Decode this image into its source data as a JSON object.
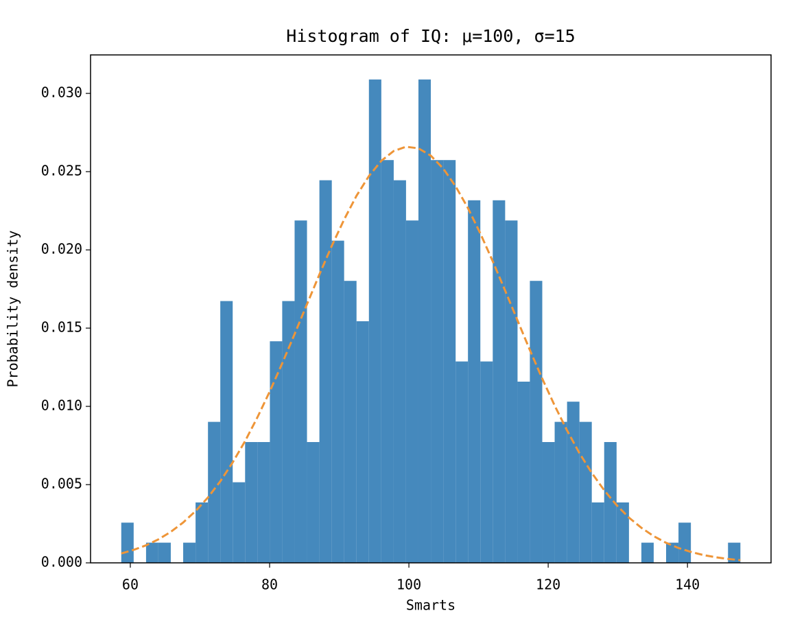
{
  "chart_data": {
    "type": "histogram",
    "title": "Histogram of IQ: μ=100, σ=15",
    "xlabel": "Smarts",
    "ylabel": "Probability density",
    "bins": [
      58.7,
      60.48,
      62.26,
      64.03,
      65.81,
      67.59,
      69.37,
      71.15,
      72.92,
      74.7,
      76.48,
      78.26,
      80.04,
      81.81,
      83.59,
      85.37,
      87.15,
      88.93,
      90.7,
      92.48,
      94.26,
      96.04,
      97.82,
      99.59,
      101.37,
      103.15,
      104.93,
      106.71,
      108.48,
      110.26,
      112.04,
      113.82,
      115.6,
      117.37,
      119.15,
      120.93,
      122.71,
      124.49,
      126.26,
      128.04,
      129.82,
      131.6,
      133.38,
      135.15,
      136.93,
      138.71,
      140.49,
      142.27,
      144.04,
      145.82,
      147.6
    ],
    "values": [
      0.00257,
      0,
      0.00129,
      0.00129,
      0,
      0.00129,
      0.00386,
      0.00901,
      0.01673,
      0.00515,
      0.00772,
      0.00772,
      0.01416,
      0.01673,
      0.02188,
      0.00772,
      0.02445,
      0.02059,
      0.01802,
      0.01544,
      0.03089,
      0.02574,
      0.02445,
      0.02188,
      0.03089,
      0.02574,
      0.02574,
      0.01287,
      0.02317,
      0.01287,
      0.02317,
      0.02188,
      0.01158,
      0.01802,
      0.00772,
      0.00901,
      0.0103,
      0.00901,
      0.00386,
      0.00772,
      0.00386,
      0,
      0.00129,
      0,
      0.00129,
      0.00257,
      0,
      0,
      0,
      0.00129
    ],
    "color": "#4589bd",
    "curve": {
      "color": "#ee9538",
      "values": [
        0.0006,
        0.00083,
        0.00112,
        0.0015,
        0.00198,
        0.00258,
        0.00331,
        0.00418,
        0.00521,
        0.00642,
        0.00778,
        0.00931,
        0.01097,
        0.01275,
        0.01462,
        0.01653,
        0.01843,
        0.02026,
        0.02194,
        0.02346,
        0.02472,
        0.02569,
        0.02632,
        0.02659,
        0.02649,
        0.02602,
        0.0252,
        0.02406,
        0.02267,
        0.02105,
        0.01927,
        0.0174,
        0.01549,
        0.0136,
        0.01177,
        0.01005,
        0.00846,
        0.00701,
        0.00575,
        0.00464,
        0.00369,
        0.00289,
        0.00224,
        0.00171,
        0.00128,
        0.00095,
        0.0007,
        0.0005,
        0.00036,
        0.00025,
        0.00017
      ]
    },
    "xlim": [
      54.29,
      152.0
    ],
    "ylim": [
      0,
      0.03246
    ],
    "xticks": [
      60,
      80,
      100,
      120,
      140
    ],
    "yticks": [
      {
        "value": 0,
        "label": "0.000"
      },
      {
        "value": 0.005,
        "label": "0.005"
      },
      {
        "value": 0.01,
        "label": "0.010"
      },
      {
        "value": 0.015,
        "label": "0.015"
      },
      {
        "value": 0.02,
        "label": "0.020"
      },
      {
        "value": 0.025,
        "label": "0.025"
      },
      {
        "value": 0.03,
        "label": "0.030"
      }
    ]
  }
}
